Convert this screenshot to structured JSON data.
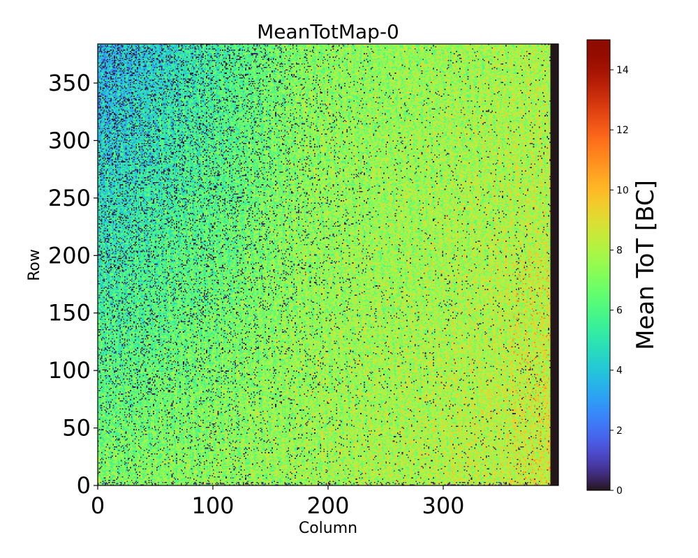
{
  "chart_data": {
    "type": "heatmap",
    "title": "MeanTotMap-0",
    "xlabel": "Column",
    "ylabel": "Row",
    "xlim": [
      0,
      400
    ],
    "ylim": [
      0,
      384
    ],
    "n_columns": 400,
    "n_rows": 384,
    "x_ticks": [
      0,
      100,
      200,
      300
    ],
    "y_ticks": [
      0,
      50,
      100,
      150,
      200,
      250,
      300,
      350
    ],
    "colormap": "turbo",
    "colorbar": {
      "label": "Mean ToT [BC]",
      "vmin": 0,
      "vmax": 15,
      "ticks": [
        0,
        2,
        4,
        6,
        8,
        10,
        12,
        14
      ]
    },
    "value_estimates": {
      "dead_columns_from": 393,
      "dead_value": 0,
      "typical_top_left": 5.0,
      "typical_center": 7.0,
      "typical_bottom_right": 8.5,
      "max_observed": 12
    }
  }
}
